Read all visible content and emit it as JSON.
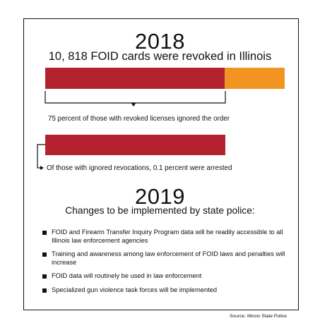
{
  "colors": {
    "revoked_red": "#b5222f",
    "remaining_orange": "#f29421",
    "text": "#111111"
  },
  "section_2018": {
    "year": "2018",
    "headline": "10, 818 FOID cards were revoked in Illinois",
    "caption_ignored": "75 percent of those with revoked licenses ignored the order",
    "caption_arrested": "Of those with ignored revocations, 0.1 percent were arrested"
  },
  "section_2019": {
    "year": "2019",
    "subhead": "Changes to be implemented by state police:",
    "bullets": [
      "FOID and Firearm Transfer Inquiry Program data will be readily accessible to all Illinois law enforcement agencies",
      "Training and awareness among law enforcement of FOID laws and penalties will increase",
      "FOID data will routinely be used in law enforcement",
      "Specialized gun violence task forces will be implemented"
    ]
  },
  "source": "Source: Illinois State Police",
  "chart_data": [
    {
      "type": "bar",
      "title": "10, 818 FOID cards were revoked in Illinois",
      "series": [
        {
          "name": "75 percent of those with revoked licenses ignored the order",
          "values": [
            75
          ],
          "color": "#b5222f"
        },
        {
          "values": [
            25
          ],
          "color": "#f29421"
        }
      ],
      "ylim": [
        0,
        100
      ]
    },
    {
      "type": "bar",
      "series": [
        {
          "name": "Of those with ignored revocations, 0.1 percent were arrested",
          "values": [
            100
          ],
          "color": "#b5222f"
        }
      ],
      "ylim": [
        0,
        100
      ]
    }
  ]
}
